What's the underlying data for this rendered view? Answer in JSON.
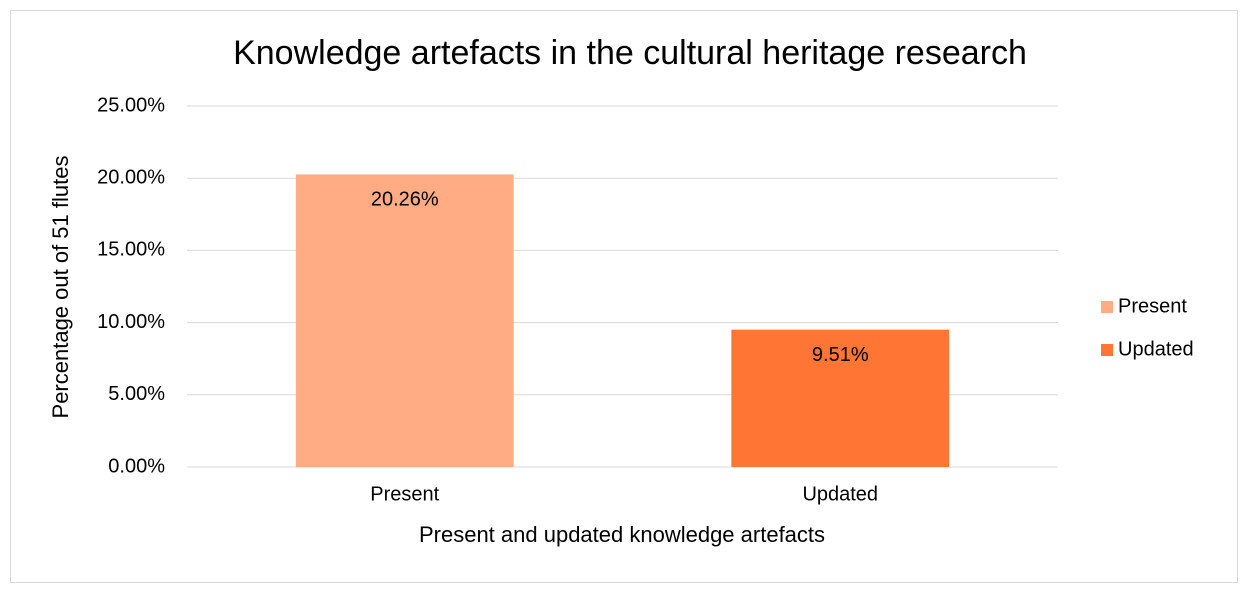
{
  "chart_data": {
    "type": "bar",
    "title": "Knowledge artefacts in the cultural heritage research",
    "x_label": "Present and updated knowledge artefacts",
    "y_label": "Percentage out of 51 flutes",
    "categories": [
      "Present",
      "Updated"
    ],
    "series": [
      {
        "name": "Present",
        "color": "#ffab84",
        "values": [
          20.26,
          null
        ],
        "value_labels": [
          "20.26%",
          null
        ]
      },
      {
        "name": "Updated",
        "color": "#ff7533",
        "values": [
          null,
          9.51
        ],
        "value_labels": [
          null,
          "9.51%"
        ]
      }
    ],
    "ylim": [
      0,
      25
    ],
    "yticks": [
      {
        "value": 0,
        "label": "0.00%"
      },
      {
        "value": 5,
        "label": "5.00%"
      },
      {
        "value": 10,
        "label": "10.00%"
      },
      {
        "value": 15,
        "label": "15.00%"
      },
      {
        "value": 20,
        "label": "20.00%"
      },
      {
        "value": 25,
        "label": "25.00%"
      }
    ],
    "grid": true,
    "legend": "right"
  }
}
